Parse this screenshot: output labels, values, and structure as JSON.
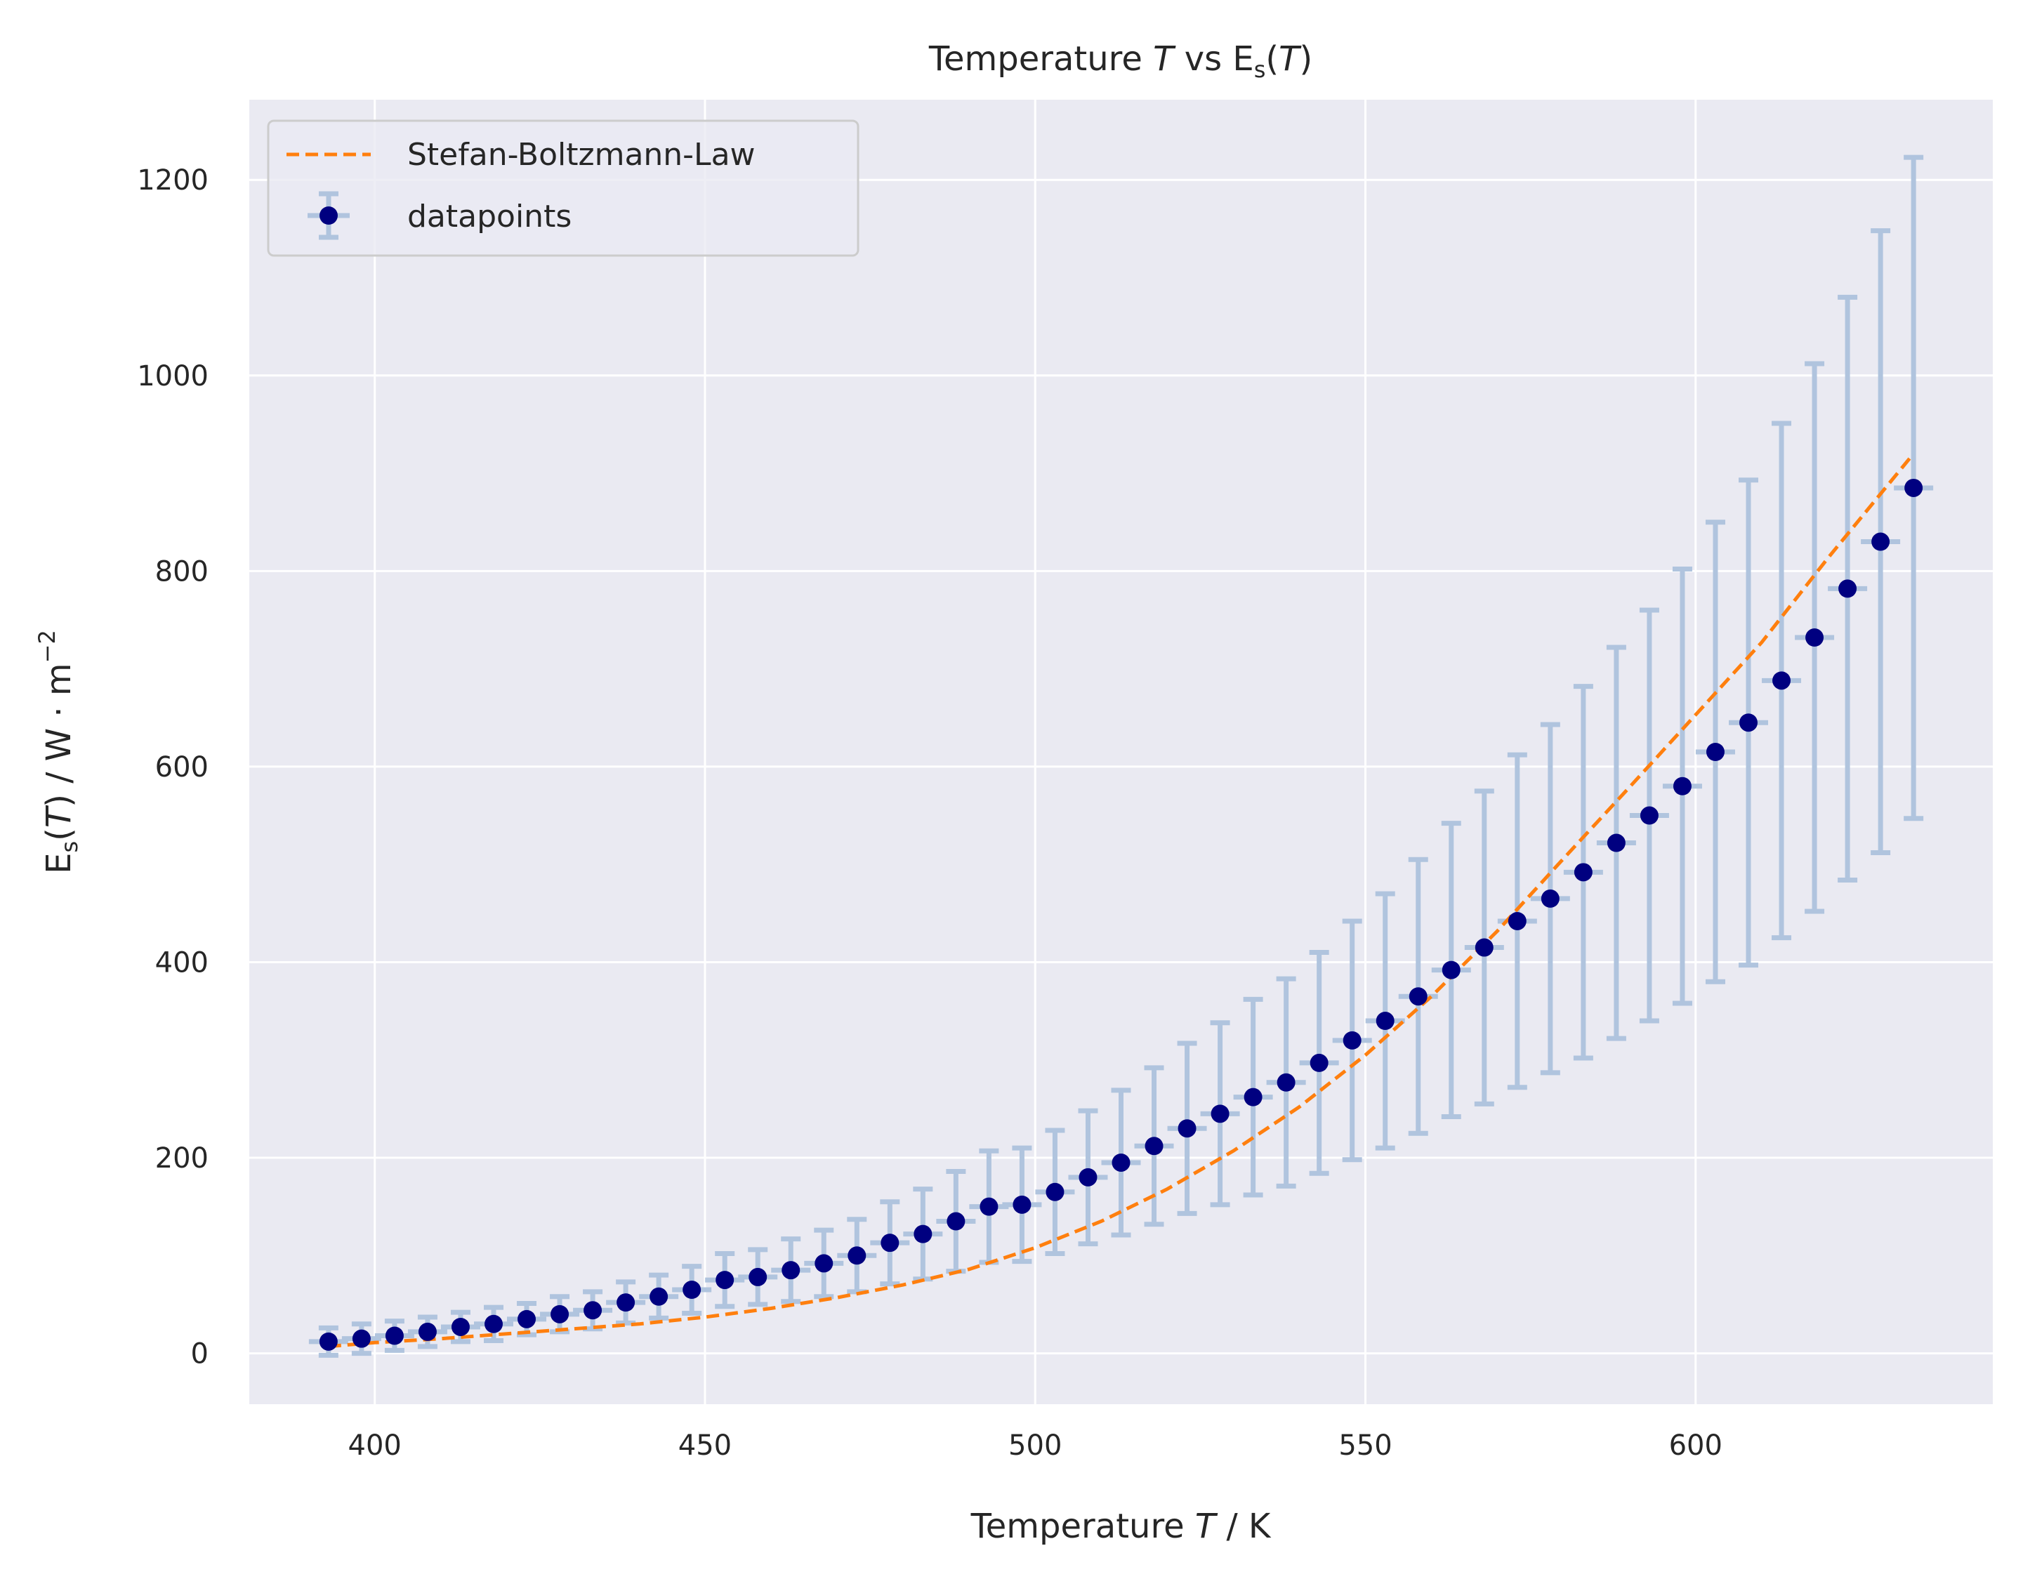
{
  "chart_data": {
    "type": "scatter",
    "title_parts": {
      "t1": "Temperature ",
      "t2": "T",
      "t3": " vs E",
      "t4": "s",
      "t5": "(",
      "t6": "T",
      "t7": ")"
    },
    "xlabel_parts": {
      "t1": "Temperature ",
      "t2": "T",
      "t3": " / K"
    },
    "ylabel_parts": {
      "t1": "E",
      "t2": "s",
      "t3": "(",
      "t4": "T",
      "t5": ") / W · m",
      "t6": "−2"
    },
    "xlim": [
      381,
      645
    ],
    "ylim": [
      -52,
      1282
    ],
    "xticks": [
      400,
      450,
      500,
      550,
      600
    ],
    "yticks": [
      0,
      200,
      400,
      600,
      800,
      1000,
      1200
    ],
    "grid": true,
    "legend_position": "top-left",
    "colors": {
      "background": "#eaeaf2",
      "grid": "#ffffff",
      "points": "#000080",
      "error_bars": "#b0c4de",
      "fit_line": "#ff7f0e"
    },
    "series": [
      {
        "name": "Stefan-Boltzmann-Law",
        "kind": "line",
        "style": "dashed",
        "x": [
          393,
          400,
          410,
          420,
          430,
          440,
          450,
          460,
          470,
          480,
          490,
          500,
          510,
          520,
          530,
          540,
          550,
          560,
          570,
          580,
          590,
          600,
          610,
          620,
          633
        ],
        "y": [
          7,
          11,
          15,
          20,
          25,
          30,
          37,
          46,
          57,
          70,
          86,
          108,
          135,
          168,
          207,
          252,
          305,
          365,
          432,
          506,
          579,
          653,
          727,
          813,
          920
        ]
      },
      {
        "name": "datapoints",
        "kind": "errorbar",
        "x": [
          393,
          398,
          403,
          408,
          413,
          418,
          423,
          428,
          433,
          438,
          443,
          448,
          453,
          458,
          463,
          468,
          473,
          478,
          483,
          488,
          493,
          498,
          503,
          508,
          513,
          518,
          523,
          528,
          533,
          538,
          543,
          548,
          553,
          558,
          563,
          568,
          573,
          578,
          583,
          588,
          593,
          598,
          603,
          608,
          613,
          618,
          623,
          628,
          633
        ],
        "y": [
          12,
          15,
          18,
          22,
          27,
          30,
          35,
          40,
          44,
          52,
          58,
          65,
          75,
          78,
          85,
          92,
          100,
          113,
          122,
          135,
          150,
          152,
          165,
          180,
          195,
          212,
          230,
          245,
          262,
          277,
          297,
          320,
          340,
          365,
          392,
          415,
          442,
          465,
          492,
          522,
          550,
          580,
          615,
          645,
          688,
          732,
          782,
          830,
          885
        ],
        "yerr": [
          14,
          15,
          15,
          15,
          15,
          17,
          16,
          18,
          19,
          21,
          22,
          24,
          27,
          28,
          32,
          34,
          37,
          42,
          46,
          51,
          57,
          58,
          63,
          68,
          74,
          80,
          87,
          93,
          100,
          106,
          113,
          122,
          130,
          140,
          150,
          160,
          170,
          178,
          190,
          200,
          210,
          222,
          235,
          248,
          263,
          280,
          298,
          318,
          338
        ]
      }
    ]
  }
}
